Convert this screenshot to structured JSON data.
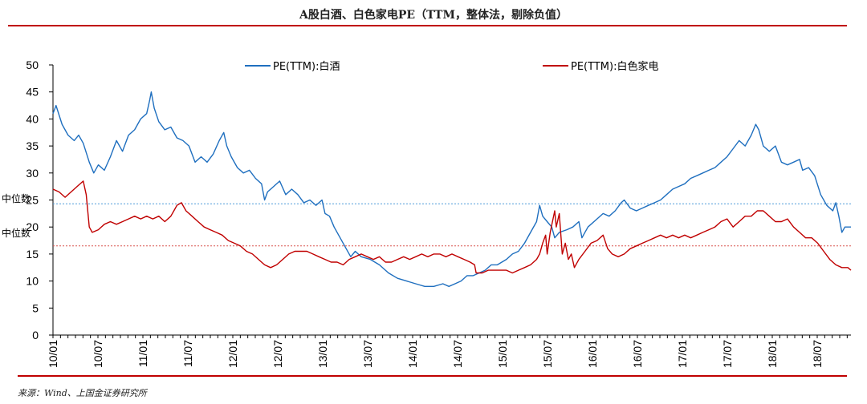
{
  "title": "A股白酒、白色家电PE（TTM，整体法，剔除负值）",
  "source": "来源：Wind、上国金证券研究所",
  "chart_data": {
    "type": "line",
    "ylim": [
      0,
      50
    ],
    "yticks": [
      0,
      5,
      10,
      15,
      20,
      25,
      30,
      35,
      40,
      45,
      50
    ],
    "x_tick_labels": [
      "10/01",
      "10/07",
      "11/01",
      "11/07",
      "12/01",
      "12/07",
      "13/01",
      "13/07",
      "14/01",
      "14/07",
      "15/01",
      "15/07",
      "16/01",
      "16/07",
      "17/01",
      "17/07",
      "18/01",
      "18/07"
    ],
    "grid": false,
    "legend_position": "top",
    "median_lines": [
      {
        "label": "中位数",
        "series": "PE(TTM):白酒",
        "value": 24.3,
        "color": "#4f9bd9"
      },
      {
        "label": "中位数",
        "series": "PE(TTM):白色家电",
        "value": 16.5,
        "color": "#d9534f"
      }
    ],
    "series": [
      {
        "name": "PE(TTM):白酒",
        "color": "#1f6fbf",
        "points": [
          [
            0,
            41
          ],
          [
            0.1,
            42.5
          ],
          [
            0.3,
            39
          ],
          [
            0.5,
            37
          ],
          [
            0.7,
            36
          ],
          [
            0.85,
            37
          ],
          [
            1.0,
            35.5
          ],
          [
            1.2,
            32
          ],
          [
            1.35,
            30
          ],
          [
            1.5,
            31.5
          ],
          [
            1.7,
            30.5
          ],
          [
            1.9,
            33
          ],
          [
            2.1,
            36
          ],
          [
            2.3,
            34
          ],
          [
            2.5,
            37
          ],
          [
            2.7,
            38
          ],
          [
            2.9,
            40
          ],
          [
            3.1,
            41
          ],
          [
            3.2,
            43.5
          ],
          [
            3.25,
            45
          ],
          [
            3.35,
            42
          ],
          [
            3.5,
            39.5
          ],
          [
            3.7,
            38
          ],
          [
            3.9,
            38.5
          ],
          [
            4.1,
            36.5
          ],
          [
            4.3,
            36
          ],
          [
            4.5,
            35
          ],
          [
            4.7,
            32
          ],
          [
            4.9,
            33
          ],
          [
            5.1,
            32
          ],
          [
            5.3,
            33.5
          ],
          [
            5.5,
            36
          ],
          [
            5.65,
            37.5
          ],
          [
            5.75,
            35
          ],
          [
            5.9,
            33
          ],
          [
            6.1,
            31
          ],
          [
            6.3,
            30
          ],
          [
            6.5,
            30.5
          ],
          [
            6.7,
            29
          ],
          [
            6.9,
            28
          ],
          [
            7.0,
            25
          ],
          [
            7.1,
            26.5
          ],
          [
            7.3,
            27.5
          ],
          [
            7.5,
            28.5
          ],
          [
            7.7,
            26
          ],
          [
            7.9,
            27
          ],
          [
            8.1,
            26
          ],
          [
            8.3,
            24.5
          ],
          [
            8.5,
            25
          ],
          [
            8.7,
            24
          ],
          [
            8.9,
            25
          ],
          [
            9.0,
            22.5
          ],
          [
            9.15,
            22
          ],
          [
            9.3,
            20
          ],
          [
            9.5,
            18
          ],
          [
            9.7,
            16
          ],
          [
            9.85,
            14.5
          ],
          [
            10.0,
            15.5
          ],
          [
            10.2,
            14.5
          ],
          [
            10.5,
            14
          ],
          [
            10.8,
            13
          ],
          [
            11.1,
            11.5
          ],
          [
            11.4,
            10.5
          ],
          [
            11.7,
            10
          ],
          [
            12.0,
            9.5
          ],
          [
            12.3,
            9
          ],
          [
            12.6,
            9
          ],
          [
            12.9,
            9.5
          ],
          [
            13.1,
            9
          ],
          [
            13.3,
            9.5
          ],
          [
            13.5,
            10
          ],
          [
            13.7,
            11
          ],
          [
            13.9,
            11
          ],
          [
            14.1,
            11.5
          ],
          [
            14.3,
            12
          ],
          [
            14.5,
            13
          ],
          [
            14.7,
            13
          ],
          [
            15.0,
            14
          ],
          [
            15.2,
            15
          ],
          [
            15.4,
            15.5
          ],
          [
            15.6,
            17
          ],
          [
            15.8,
            19
          ],
          [
            16.0,
            21
          ],
          [
            16.1,
            24
          ],
          [
            16.2,
            22
          ],
          [
            16.35,
            21
          ],
          [
            16.5,
            20
          ],
          [
            16.6,
            18
          ],
          [
            16.75,
            19
          ],
          [
            17.0,
            19.5
          ],
          [
            17.2,
            20
          ],
          [
            17.4,
            21
          ],
          [
            17.5,
            18
          ],
          [
            17.7,
            20
          ],
          [
            18.0,
            21.5
          ],
          [
            18.2,
            22.5
          ],
          [
            18.4,
            22
          ],
          [
            18.6,
            23
          ],
          [
            18.8,
            24.5
          ],
          [
            18.9,
            25
          ],
          [
            19.1,
            23.5
          ],
          [
            19.3,
            23
          ],
          [
            19.5,
            23.5
          ],
          [
            19.7,
            24
          ],
          [
            19.9,
            24.5
          ],
          [
            20.1,
            25
          ],
          [
            20.3,
            26
          ],
          [
            20.5,
            27
          ],
          [
            20.7,
            27.5
          ],
          [
            20.9,
            28
          ],
          [
            21.1,
            29
          ],
          [
            21.3,
            29.5
          ],
          [
            21.5,
            30
          ],
          [
            21.7,
            30.5
          ],
          [
            21.9,
            31
          ],
          [
            22.1,
            32
          ],
          [
            22.3,
            33
          ],
          [
            22.5,
            34.5
          ],
          [
            22.7,
            36
          ],
          [
            22.9,
            35
          ],
          [
            23.1,
            37
          ],
          [
            23.25,
            39
          ],
          [
            23.35,
            38
          ],
          [
            23.5,
            35
          ],
          [
            23.7,
            34
          ],
          [
            23.9,
            35
          ],
          [
            24.1,
            32
          ],
          [
            24.3,
            31.5
          ],
          [
            24.5,
            32
          ],
          [
            24.7,
            32.5
          ],
          [
            24.8,
            30.5
          ],
          [
            25.0,
            31
          ],
          [
            25.2,
            29.5
          ],
          [
            25.4,
            26
          ],
          [
            25.6,
            24
          ],
          [
            25.8,
            23
          ],
          [
            25.9,
            24.5
          ],
          [
            26.0,
            22
          ],
          [
            26.1,
            19
          ],
          [
            26.2,
            20
          ],
          [
            26.4,
            20
          ]
        ]
      },
      {
        "name": "PE(TTM):白色家电",
        "color": "#c00000",
        "points": [
          [
            0,
            27
          ],
          [
            0.2,
            26.5
          ],
          [
            0.4,
            25.5
          ],
          [
            0.6,
            26.5
          ],
          [
            0.8,
            27.5
          ],
          [
            1.0,
            28.5
          ],
          [
            1.1,
            26
          ],
          [
            1.2,
            20
          ],
          [
            1.3,
            19
          ],
          [
            1.5,
            19.5
          ],
          [
            1.7,
            20.5
          ],
          [
            1.9,
            21
          ],
          [
            2.1,
            20.5
          ],
          [
            2.3,
            21
          ],
          [
            2.5,
            21.5
          ],
          [
            2.7,
            22
          ],
          [
            2.9,
            21.5
          ],
          [
            3.1,
            22
          ],
          [
            3.3,
            21.5
          ],
          [
            3.5,
            22
          ],
          [
            3.7,
            21
          ],
          [
            3.9,
            22
          ],
          [
            4.0,
            23
          ],
          [
            4.1,
            24
          ],
          [
            4.25,
            24.5
          ],
          [
            4.4,
            23
          ],
          [
            4.6,
            22
          ],
          [
            4.8,
            21
          ],
          [
            5.0,
            20
          ],
          [
            5.2,
            19.5
          ],
          [
            5.4,
            19
          ],
          [
            5.6,
            18.5
          ],
          [
            5.8,
            17.5
          ],
          [
            6.0,
            17
          ],
          [
            6.2,
            16.5
          ],
          [
            6.4,
            15.5
          ],
          [
            6.6,
            15
          ],
          [
            6.8,
            14
          ],
          [
            7.0,
            13
          ],
          [
            7.2,
            12.5
          ],
          [
            7.4,
            13
          ],
          [
            7.6,
            14
          ],
          [
            7.8,
            15
          ],
          [
            8.0,
            15.5
          ],
          [
            8.2,
            15.5
          ],
          [
            8.4,
            15.5
          ],
          [
            8.6,
            15
          ],
          [
            8.8,
            14.5
          ],
          [
            9.0,
            14
          ],
          [
            9.2,
            13.5
          ],
          [
            9.4,
            13.5
          ],
          [
            9.6,
            13
          ],
          [
            9.8,
            14
          ],
          [
            10.0,
            14.5
          ],
          [
            10.2,
            15
          ],
          [
            10.4,
            14.5
          ],
          [
            10.6,
            14
          ],
          [
            10.8,
            14.5
          ],
          [
            11.0,
            13.5
          ],
          [
            11.2,
            13.5
          ],
          [
            11.4,
            14
          ],
          [
            11.6,
            14.5
          ],
          [
            11.8,
            14
          ],
          [
            12.0,
            14.5
          ],
          [
            12.2,
            15
          ],
          [
            12.4,
            14.5
          ],
          [
            12.6,
            15
          ],
          [
            12.8,
            15
          ],
          [
            13.0,
            14.5
          ],
          [
            13.2,
            15
          ],
          [
            13.4,
            14.5
          ],
          [
            13.6,
            14
          ],
          [
            13.8,
            13.5
          ],
          [
            13.95,
            13
          ],
          [
            14.0,
            11.5
          ],
          [
            14.2,
            11.5
          ],
          [
            14.4,
            12
          ],
          [
            14.6,
            12
          ],
          [
            14.8,
            12
          ],
          [
            15.0,
            12
          ],
          [
            15.2,
            11.5
          ],
          [
            15.4,
            12
          ],
          [
            15.6,
            12.5
          ],
          [
            15.8,
            13
          ],
          [
            16.0,
            14
          ],
          [
            16.1,
            15
          ],
          [
            16.2,
            17
          ],
          [
            16.3,
            18.5
          ],
          [
            16.35,
            15
          ],
          [
            16.45,
            19
          ],
          [
            16.6,
            23
          ],
          [
            16.65,
            20
          ],
          [
            16.75,
            22.5
          ],
          [
            16.85,
            15
          ],
          [
            16.95,
            17
          ],
          [
            17.05,
            14
          ],
          [
            17.15,
            15
          ],
          [
            17.25,
            12.5
          ],
          [
            17.4,
            14
          ],
          [
            17.6,
            15.5
          ],
          [
            17.8,
            17
          ],
          [
            18.0,
            17.5
          ],
          [
            18.2,
            18.5
          ],
          [
            18.35,
            16
          ],
          [
            18.5,
            15
          ],
          [
            18.7,
            14.5
          ],
          [
            18.9,
            15
          ],
          [
            19.1,
            16
          ],
          [
            19.3,
            16.5
          ],
          [
            19.5,
            17
          ],
          [
            19.7,
            17.5
          ],
          [
            19.9,
            18
          ],
          [
            20.1,
            18.5
          ],
          [
            20.3,
            18
          ],
          [
            20.5,
            18.5
          ],
          [
            20.7,
            18
          ],
          [
            20.9,
            18.5
          ],
          [
            21.1,
            18
          ],
          [
            21.3,
            18.5
          ],
          [
            21.5,
            19
          ],
          [
            21.7,
            19.5
          ],
          [
            21.9,
            20
          ],
          [
            22.1,
            21
          ],
          [
            22.3,
            21.5
          ],
          [
            22.5,
            20
          ],
          [
            22.7,
            21
          ],
          [
            22.9,
            22
          ],
          [
            23.1,
            22
          ],
          [
            23.3,
            23
          ],
          [
            23.5,
            23
          ],
          [
            23.7,
            22
          ],
          [
            23.9,
            21
          ],
          [
            24.1,
            21
          ],
          [
            24.3,
            21.5
          ],
          [
            24.5,
            20
          ],
          [
            24.7,
            19
          ],
          [
            24.9,
            18
          ],
          [
            25.1,
            18
          ],
          [
            25.3,
            17
          ],
          [
            25.5,
            15.5
          ],
          [
            25.7,
            14
          ],
          [
            25.9,
            13
          ],
          [
            26.1,
            12.5
          ],
          [
            26.3,
            12.5
          ],
          [
            26.4,
            12
          ]
        ]
      }
    ]
  }
}
